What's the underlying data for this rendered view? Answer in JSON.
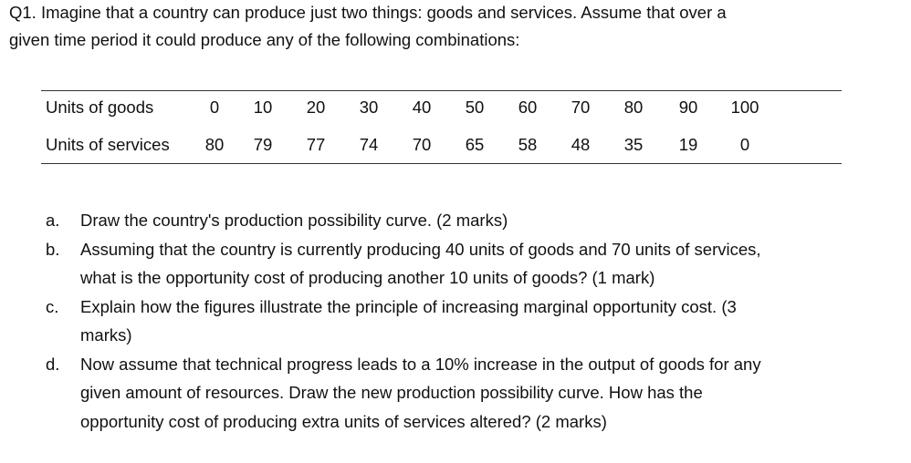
{
  "question": {
    "lines": [
      "Q1. Imagine that a country can produce just two things: goods and services. Assume that over a",
      "given time period it could produce any of the following combinations:"
    ]
  },
  "table": {
    "rows": [
      [
        "Units of goods",
        0,
        10,
        20,
        30,
        40,
        50,
        60,
        70,
        80,
        90,
        100
      ],
      [
        "Units of services",
        80,
        79,
        77,
        74,
        70,
        65,
        58,
        48,
        35,
        19,
        0
      ]
    ]
  },
  "items": [
    {
      "label": "a.",
      "lines": [
        "Draw the country's production possibility  curve. (2 marks)"
      ]
    },
    {
      "label": "b.",
      "lines": [
        "Assuming that the country is currently producing 40 units of goods and 70 units of services,",
        "what is the opportunity cost of producing another 10 units of goods? (1 mark)"
      ]
    },
    {
      "label": "c.",
      "lines": [
        "Explain how the figures illustrate the principle of increasing marginal opportunity cost. (3",
        "marks)"
      ]
    },
    {
      "label": "d.",
      "lines": [
        "Now assume that technical progress leads to a 10% increase in the output of goods for any",
        "given amount of resources. Draw the new production possibility curve. How has the",
        "opportunity cost of producing extra units of services altered? (2 marks)"
      ]
    }
  ]
}
